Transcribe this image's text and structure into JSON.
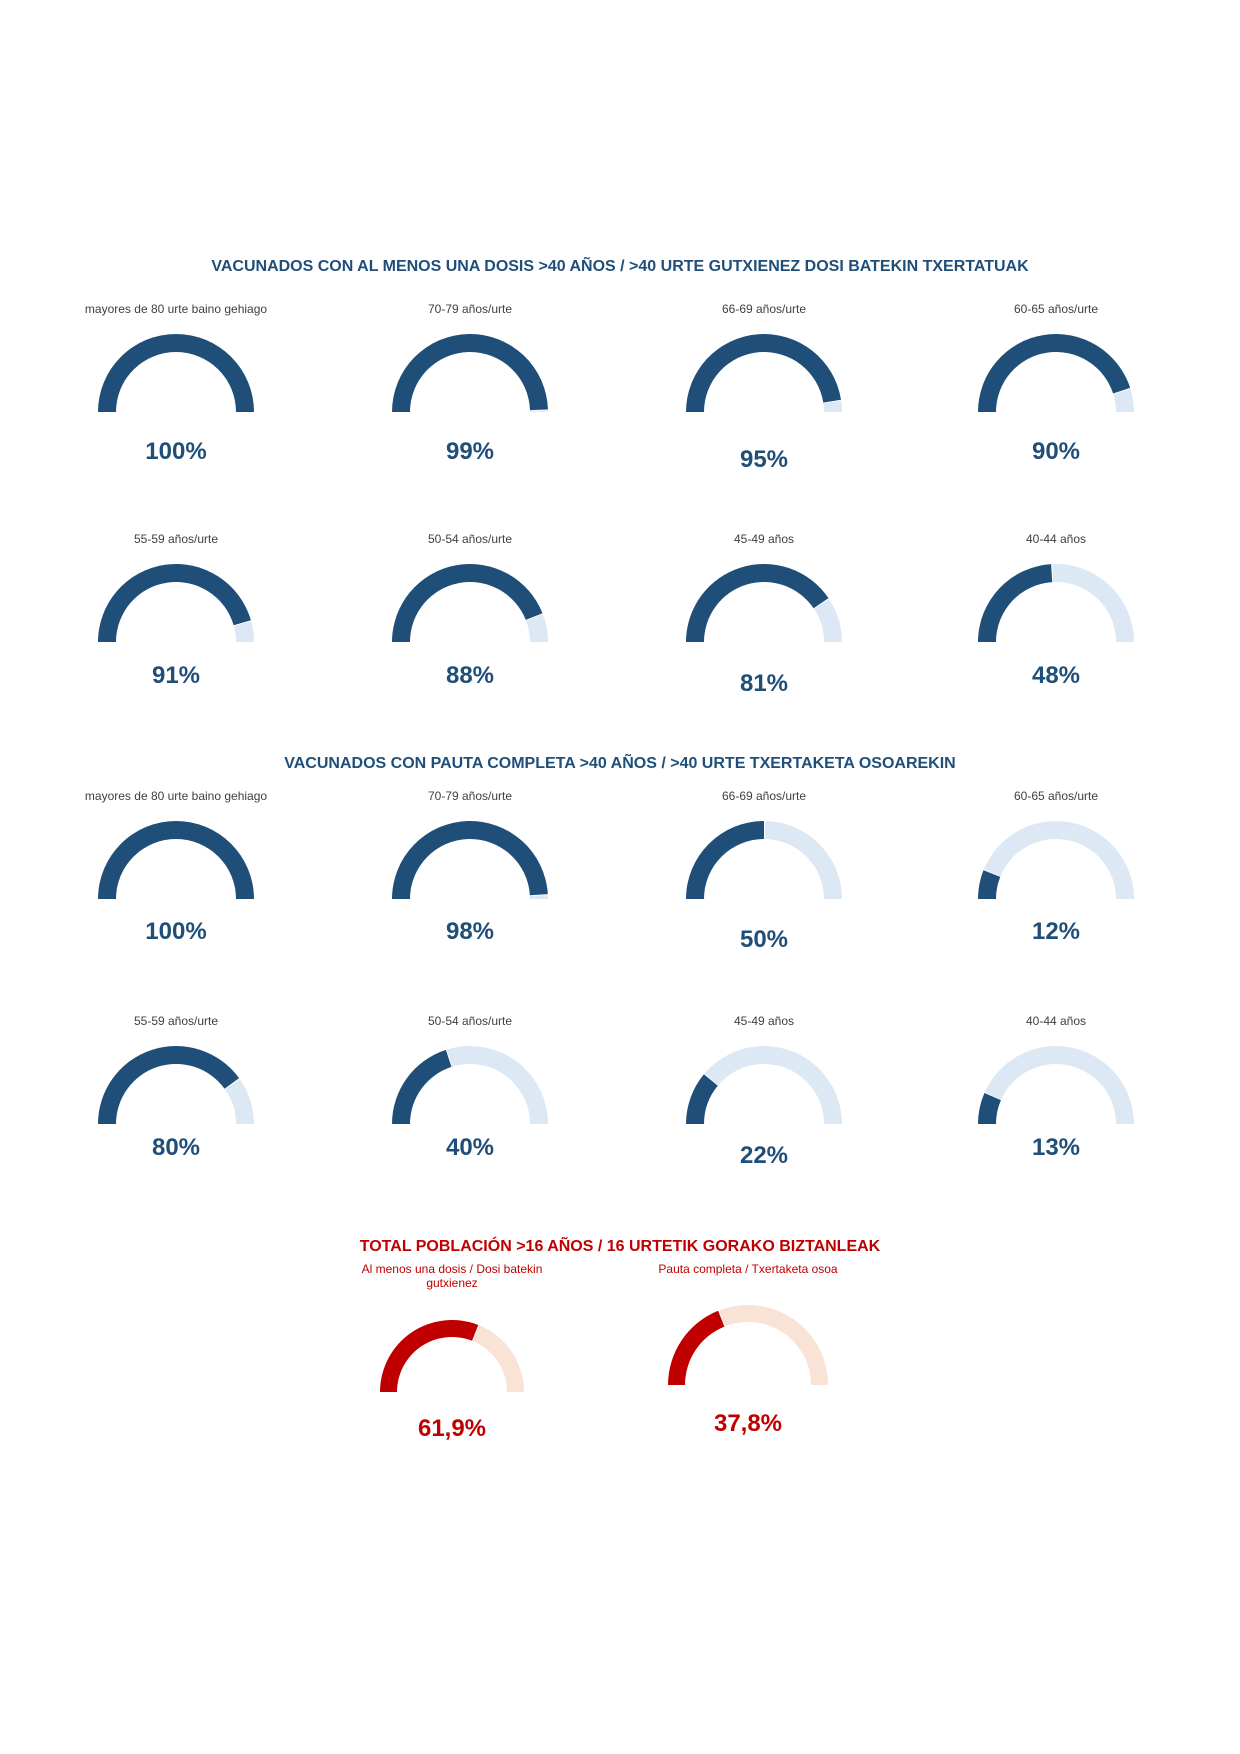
{
  "colors": {
    "blue_fill": "#1f4e79",
    "blue_rest": "#dde8f5",
    "red_fill": "#c00000",
    "red_rest": "#f8e3d6"
  },
  "chart_data": [
    {
      "type": "gauge",
      "title": "VACUNADOS CON AL MENOS UNA DOSIS >40 AÑOS / >40 URTE GUTXIENEZ DOSI BATEKIN TXERTATUAK",
      "gauges": [
        {
          "label": "mayores de 80 urte baino gehiago",
          "value": 100,
          "text": "100%"
        },
        {
          "label": "70-79 años/urte",
          "value": 99,
          "text": "99%"
        },
        {
          "label": "66-69 años/urte",
          "value": 95,
          "text": "95%"
        },
        {
          "label": "60-65 años/urte",
          "value": 90,
          "text": "90%"
        },
        {
          "label": "55-59 años/urte",
          "value": 91,
          "text": "91%"
        },
        {
          "label": "50-54 años/urte",
          "value": 88,
          "text": "88%"
        },
        {
          "label": "45-49 años",
          "value": 81,
          "text": "81%"
        },
        {
          "label": "40-44 años",
          "value": 48,
          "text": "48%"
        }
      ]
    },
    {
      "type": "gauge",
      "title": "VACUNADOS CON PAUTA COMPLETA >40 AÑOS / >40 URTE TXERTAKETA OSOAREKIN",
      "gauges": [
        {
          "label": "mayores de 80 urte baino gehiago",
          "value": 100,
          "text": "100%"
        },
        {
          "label": "70-79 años/urte",
          "value": 98,
          "text": "98%"
        },
        {
          "label": "66-69 años/urte",
          "value": 50,
          "text": "50%"
        },
        {
          "label": "60-65 años/urte",
          "value": 12,
          "text": "12%"
        },
        {
          "label": "55-59 años/urte",
          "value": 80,
          "text": "80%"
        },
        {
          "label": "50-54 años/urte",
          "value": 40,
          "text": "40%"
        },
        {
          "label": "45-49 años",
          "value": 22,
          "text": "22%"
        },
        {
          "label": "40-44 años",
          "value": 13,
          "text": "13%"
        }
      ]
    },
    {
      "type": "gauge",
      "title": "TOTAL POBLACIÓN >16 AÑOS / 16 URTETIK GORAKO BIZTANLEAK",
      "gauges": [
        {
          "label": "Al menos una dosis / Dosi batekin gutxienez",
          "value": 61.9,
          "text": "61,9%"
        },
        {
          "label": "Pauta completa / Txertaketa osoa",
          "value": 37.8,
          "text": "37,8%"
        }
      ]
    }
  ]
}
